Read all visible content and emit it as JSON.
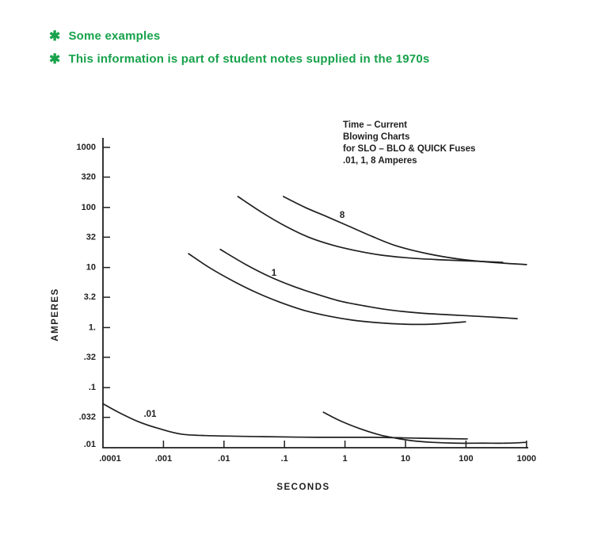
{
  "colors": {
    "note_green": "#17a24b",
    "ink": "#1f1f1f"
  },
  "notes": {
    "bullet_glyph": "✱",
    "items": [
      "Some examples",
      "This information is part of student notes supplied in the 1970s"
    ]
  },
  "chart_data": {
    "type": "line",
    "title_lines": [
      "Time – Current",
      "Blowing Charts",
      "for SLO – BLO & QUICK Fuses",
      ".01, 1, 8 Amperes"
    ],
    "xlabel": "SECONDS",
    "ylabel": "AMPERES",
    "x_scale": "log",
    "y_scale": "log",
    "xlim": [
      0.0001,
      1000
    ],
    "ylim": [
      0.01,
      1000
    ],
    "grid": false,
    "legend": "none",
    "x_ticks": [
      {
        "value": 0.0001,
        "label": ".0001"
      },
      {
        "value": 0.001,
        "label": ".001"
      },
      {
        "value": 0.01,
        "label": ".01"
      },
      {
        "value": 0.1,
        "label": ".1"
      },
      {
        "value": 1,
        "label": "1"
      },
      {
        "value": 10,
        "label": "10"
      },
      {
        "value": 100,
        "label": "100"
      },
      {
        "value": 1000,
        "label": "1000"
      }
    ],
    "y_ticks": [
      {
        "value": 1000,
        "label": "1000"
      },
      {
        "value": 320,
        "label": "320"
      },
      {
        "value": 100,
        "label": "100"
      },
      {
        "value": 32,
        "label": "32"
      },
      {
        "value": 10,
        "label": "10"
      },
      {
        "value": 3.2,
        "label": "3.2"
      },
      {
        "value": 1,
        "label": "1."
      },
      {
        "value": 0.32,
        "label": ".32"
      },
      {
        "value": 0.1,
        "label": ".1"
      },
      {
        "value": 0.032,
        "label": ".032"
      },
      {
        "value": 0.01,
        "label": ".01"
      }
    ],
    "series": [
      {
        "label": "8",
        "variant": "upper",
        "points": [
          [
            0.096,
            152
          ],
          [
            0.22,
            100
          ],
          [
            0.49,
            71
          ],
          [
            1.14,
            49
          ],
          [
            2.8,
            33
          ],
          [
            7,
            23
          ],
          [
            23,
            17
          ],
          [
            78,
            13.8
          ],
          [
            260,
            12.2
          ],
          [
            1000,
            11.2
          ]
        ]
      },
      {
        "label": "8",
        "variant": "lower",
        "points": [
          [
            0.017,
            152
          ],
          [
            0.042,
            83
          ],
          [
            0.103,
            49
          ],
          [
            0.25,
            32
          ],
          [
            0.63,
            23.5
          ],
          [
            1.54,
            19
          ],
          [
            3.8,
            16.2
          ],
          [
            12.7,
            14.3
          ],
          [
            42,
            13.4
          ],
          [
            190,
            12.6
          ],
          [
            405,
            12.2
          ]
        ]
      },
      {
        "label": "1",
        "variant": "upper",
        "points": [
          [
            0.0087,
            20
          ],
          [
            0.023,
            11.2
          ],
          [
            0.056,
            7.1
          ],
          [
            0.137,
            4.9
          ],
          [
            0.34,
            3.6
          ],
          [
            0.84,
            2.75
          ],
          [
            2.1,
            2.3
          ],
          [
            5.2,
            1.98
          ],
          [
            17,
            1.75
          ],
          [
            78,
            1.6
          ],
          [
            260,
            1.5
          ],
          [
            700,
            1.41
          ]
        ]
      },
      {
        "label": "1",
        "variant": "lower",
        "points": [
          [
            0.0026,
            17
          ],
          [
            0.0058,
            9.9
          ],
          [
            0.0144,
            5.9
          ],
          [
            0.036,
            3.75
          ],
          [
            0.088,
            2.6
          ],
          [
            0.22,
            1.91
          ],
          [
            0.54,
            1.55
          ],
          [
            1.33,
            1.33
          ],
          [
            3.3,
            1.21
          ],
          [
            9.4,
            1.14
          ],
          [
            27,
            1.14
          ],
          [
            66,
            1.21
          ],
          [
            98,
            1.25
          ]
        ]
      },
      {
        "label": ".01",
        "variant": "left",
        "points": [
          [
            0.0001,
            0.054
          ],
          [
            0.00018,
            0.039
          ],
          [
            0.00039,
            0.027
          ],
          [
            0.00082,
            0.021
          ],
          [
            0.002,
            0.0168
          ],
          [
            0.0068,
            0.0158
          ],
          [
            0.0415,
            0.0153
          ],
          [
            0.34,
            0.0149
          ],
          [
            2.85,
            0.0149
          ],
          [
            17,
            0.0144
          ],
          [
            105,
            0.014
          ]
        ]
      },
      {
        "label": ".01",
        "variant": "right",
        "points": [
          [
            0.44,
            0.039
          ],
          [
            0.84,
            0.028
          ],
          [
            1.78,
            0.0207
          ],
          [
            3.8,
            0.0163
          ],
          [
            7,
            0.0144
          ],
          [
            12.7,
            0.0131
          ],
          [
            27,
            0.0123
          ],
          [
            66,
            0.0119
          ],
          [
            190,
            0.0119
          ],
          [
            470,
            0.0119
          ],
          [
            1000,
            0.0123
          ]
        ]
      }
    ],
    "curve_labels": [
      {
        "text": "8",
        "t": 0.9,
        "amperes": 73
      },
      {
        "text": "1",
        "t": 0.067,
        "amperes": 8
      },
      {
        "text": ".01",
        "t": 0.0006,
        "amperes": 0.036
      }
    ]
  }
}
